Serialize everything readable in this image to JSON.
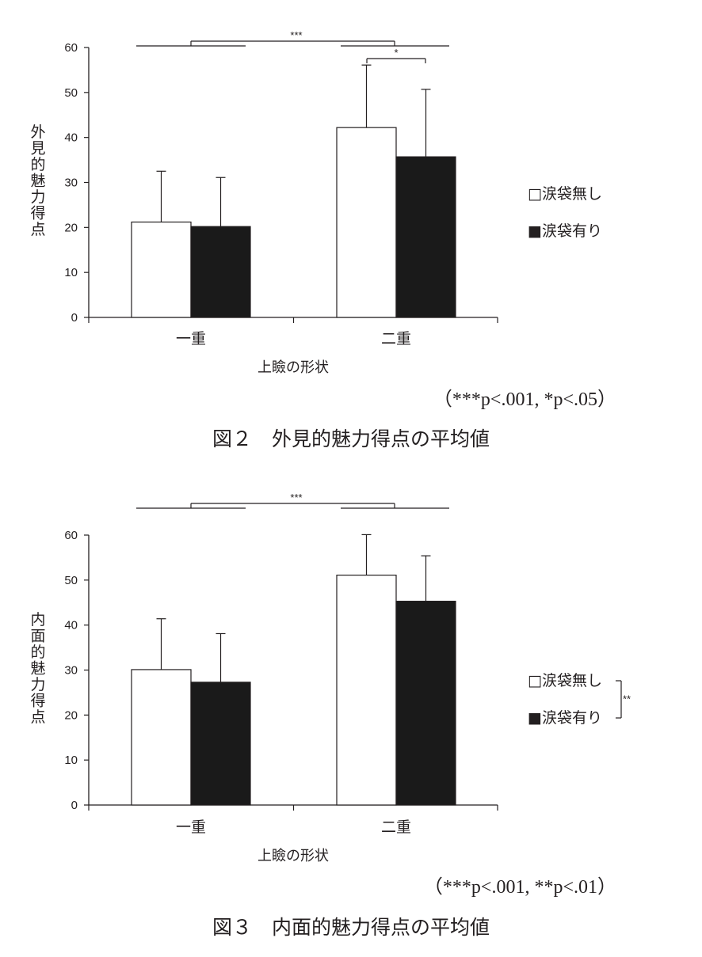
{
  "chart_data": [
    {
      "type": "bar",
      "caption": "図２　外見的魅力得点の平均値",
      "xlabel": "上瞼の形状",
      "ylabel": "外見的魅力得点",
      "categories": [
        "一重",
        "二重"
      ],
      "ylim": [
        0,
        60
      ],
      "yticks": [
        "0",
        "10",
        "20",
        "30",
        "40",
        "50",
        "60"
      ],
      "legend": {
        "placement": "right",
        "markers": [
          "□",
          "■"
        ]
      },
      "series": [
        {
          "name": "涙袋無し",
          "color": "#ffffff",
          "values": [
            21.2,
            42.2
          ],
          "errors": [
            11.3,
            13.9
          ]
        },
        {
          "name": "涙袋有り",
          "color": "#1a1a1a",
          "values": [
            20.2,
            35.7
          ],
          "errors": [
            10.9,
            15.0
          ]
        }
      ],
      "significance": [
        {
          "label": "***",
          "between": "一重 vs 二重"
        },
        {
          "label": "*",
          "between": "二重: 涙袋無し vs 涙袋有り"
        }
      ],
      "note": "（***p<.001, *p<.05）"
    },
    {
      "type": "bar",
      "caption": "図３　内面的魅力得点の平均値",
      "xlabel": "上瞼の形状",
      "ylabel": "内面的魅力得点",
      "categories": [
        "一重",
        "二重"
      ],
      "ylim": [
        0,
        60
      ],
      "yticks": [
        "0",
        "10",
        "20",
        "30",
        "40",
        "50",
        "60"
      ],
      "legend": {
        "placement": "right",
        "markers": [
          "□",
          "■"
        ]
      },
      "series": [
        {
          "name": "涙袋無し",
          "color": "#ffffff",
          "values": [
            30.1,
            51.1
          ],
          "errors": [
            11.3,
            9.0
          ]
        },
        {
          "name": "涙袋有り",
          "color": "#1a1a1a",
          "values": [
            27.3,
            45.3
          ],
          "errors": [
            10.8,
            10.1
          ]
        }
      ],
      "significance": [
        {
          "label": "***",
          "between": "一重 vs 二重"
        },
        {
          "label": "**",
          "between": "涙袋無し vs 涙袋有り"
        }
      ],
      "note": "（***p<.001, **p<.01）"
    }
  ]
}
